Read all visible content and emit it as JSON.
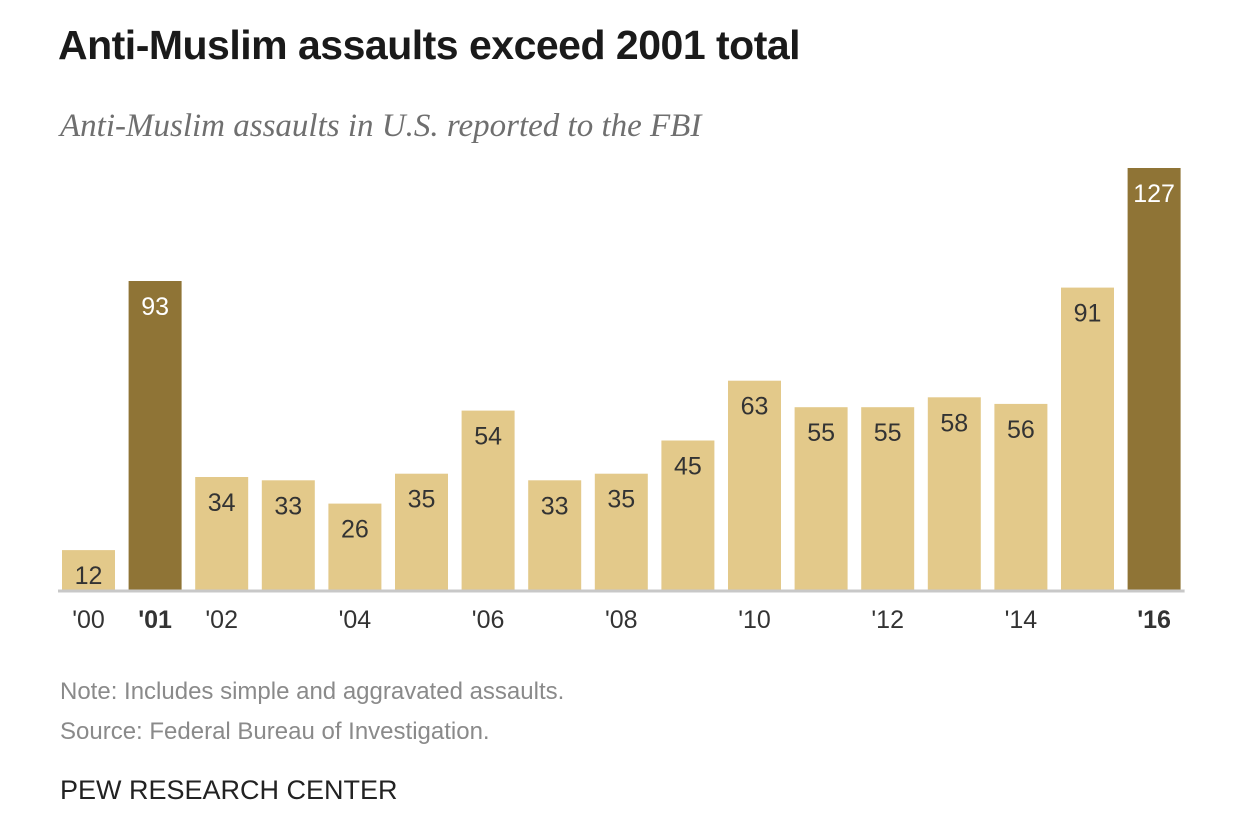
{
  "colors": {
    "bar": "#e3c98a",
    "bar_highlight": "#8f7436",
    "label_dark": "#333333",
    "label_light": "#ffffff",
    "baseline": "#c8c8c8"
  },
  "footer": {
    "note": "Note: Includes simple and aggravated assaults.",
    "source": "Source: Federal Bureau of Investigation.",
    "brand": "PEW RESEARCH CENTER"
  },
  "chart_data": {
    "type": "bar",
    "title": "Anti-Muslim assaults exceed 2001 total",
    "subtitle": "Anti-Muslim assaults in U.S. reported to the FBI",
    "categories": [
      "2000",
      "2001",
      "2002",
      "2003",
      "2004",
      "2005",
      "2006",
      "2007",
      "2008",
      "2009",
      "2010",
      "2011",
      "2012",
      "2013",
      "2014",
      "2015",
      "2016"
    ],
    "tick_labels": [
      "'00",
      "'01",
      "'02",
      "",
      "'04",
      "",
      "'06",
      "",
      "'08",
      "",
      "'10",
      "",
      "'12",
      "",
      "'14",
      "",
      "'16"
    ],
    "values": [
      12,
      93,
      34,
      33,
      26,
      35,
      54,
      33,
      35,
      45,
      63,
      55,
      55,
      58,
      56,
      91,
      127
    ],
    "highlighted": [
      "2001",
      "2016"
    ],
    "xlabel": "",
    "ylabel": "",
    "ylim": [
      0,
      127
    ],
    "grid": false
  }
}
